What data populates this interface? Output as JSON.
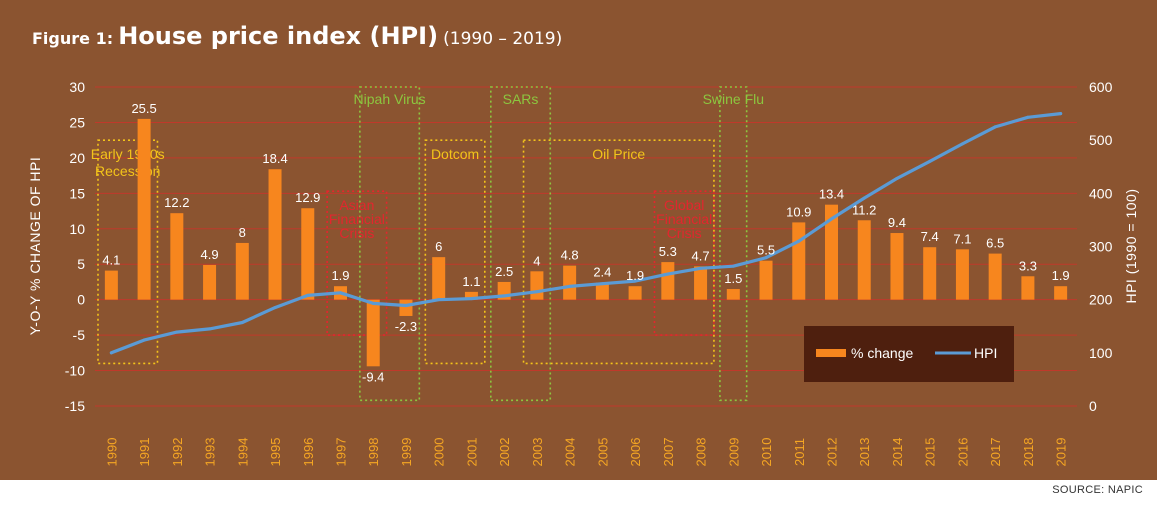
{
  "header": {
    "title_prefix": "Figure 1:",
    "title_main": "House price index (HPI)",
    "title_years": "(1990 – 2019)"
  },
  "source": "SOURCE: NAPIC",
  "colors": {
    "background": "#8b5430",
    "bar": "#f7861e",
    "line": "#5b9bd5",
    "gridline": "#c0392b",
    "tick_years": "#f5a623",
    "ann_yellow": "#f3c41a",
    "ann_green": "#8cc63f",
    "ann_red": "#e3262e",
    "legend_bg": "#4e1f0e"
  },
  "chart_data": {
    "type": "bar",
    "categories": [
      "1990",
      "1991",
      "1992",
      "1993",
      "1994",
      "1995",
      "1996",
      "1997",
      "1998",
      "1999",
      "2000",
      "2001",
      "2002",
      "2003",
      "2004",
      "2005",
      "2006",
      "2007",
      "2008",
      "2009",
      "2010",
      "2011",
      "2012",
      "2013",
      "2014",
      "2015",
      "2016",
      "2017",
      "2018",
      "2019"
    ],
    "series": [
      {
        "name": "% change",
        "type": "bar",
        "axis": "left",
        "values": [
          4.1,
          25.5,
          12.2,
          4.9,
          8,
          18.4,
          12.9,
          1.9,
          -9.4,
          -2.3,
          6,
          1.1,
          2.5,
          4,
          4.8,
          2.4,
          1.9,
          5.3,
          4.7,
          1.5,
          5.5,
          10.9,
          13.4,
          11.2,
          9.4,
          7.4,
          7.1,
          6.5,
          3.3,
          1.9
        ],
        "labels": [
          "4.1",
          "25.5",
          "12.2",
          "4.9",
          "8",
          "18.4",
          "12.9",
          "1.9",
          "-9.4",
          "-2.3",
          "6",
          "1.1",
          "2.5",
          "4",
          "4.8",
          "2.4",
          "1.9",
          "5.3",
          "4.7",
          "1.5",
          "5.5",
          "10.9",
          "13.4",
          "11.2",
          "9.4",
          "7.4",
          "7.1",
          "6.5",
          "3.3",
          "1.9"
        ]
      },
      {
        "name": "HPI",
        "type": "line",
        "axis": "right",
        "values": [
          100,
          124,
          139,
          145,
          157,
          185,
          208,
          213,
          193,
          189,
          200,
          202,
          207,
          215,
          225,
          230,
          235,
          248,
          259,
          263,
          279,
          310,
          352,
          391,
          428,
          460,
          493,
          525,
          543,
          550
        ]
      }
    ],
    "ylabel": "Y-O-Y % CHANGE OF HPI",
    "y2label": "HPI (1990 = 100)",
    "ylim": [
      -15,
      30
    ],
    "yticks": [
      -15,
      -10,
      -5,
      0,
      5,
      10,
      15,
      20,
      25,
      30
    ],
    "y2lim": [
      0,
      600
    ],
    "y2ticks": [
      0,
      100,
      200,
      300,
      400,
      500,
      600
    ],
    "grid": true,
    "legend": {
      "position": "bottom-right",
      "entries": [
        "% change",
        "HPI"
      ]
    },
    "annotations": [
      {
        "label": "Early 1990s Recession",
        "lines": [
          "Early 1990s",
          "Recession"
        ],
        "x_from": "1990",
        "x_to": "1991",
        "y_top": 22.5,
        "y_bottom": -9,
        "color": "yellow"
      },
      {
        "label": "Nipah Virus",
        "lines": [
          "Nipah Virus"
        ],
        "x_from": "1998",
        "x_to": "1999",
        "y_top": 30,
        "y_bottom": -14.2,
        "color": "green"
      },
      {
        "label": "Asian Financial Crisis",
        "lines": [
          "Asian",
          "Financial",
          "Crisis"
        ],
        "x_from": "1997",
        "x_to": "1998",
        "y_top": 15.3,
        "y_bottom": -5,
        "color": "red"
      },
      {
        "label": "Dotcom",
        "lines": [
          "Dotcom"
        ],
        "x_from": "2000",
        "x_to": "2001",
        "y_top": 22.5,
        "y_bottom": -9,
        "color": "yellow"
      },
      {
        "label": "SARs",
        "lines": [
          "SARs"
        ],
        "x_from": "2002",
        "x_to": "2003",
        "y_top": 30,
        "y_bottom": -14.2,
        "color": "green"
      },
      {
        "label": "Oil Price",
        "lines": [
          "Oil Price"
        ],
        "x_from": "2003",
        "x_to": "2008",
        "y_top": 22.5,
        "y_bottom": -9,
        "color": "yellow"
      },
      {
        "label": "Global Financial Crisis",
        "lines": [
          "Global",
          "Financial",
          "Crisis"
        ],
        "x_from": "2007",
        "x_to": "2008",
        "y_top": 15.3,
        "y_bottom": -5,
        "color": "red"
      },
      {
        "label": "Swine Flu",
        "lines": [
          "Swine Flu"
        ],
        "x_from": "2009",
        "x_to": "2009",
        "y_top": 30,
        "y_bottom": -14.2,
        "color": "green"
      }
    ]
  }
}
